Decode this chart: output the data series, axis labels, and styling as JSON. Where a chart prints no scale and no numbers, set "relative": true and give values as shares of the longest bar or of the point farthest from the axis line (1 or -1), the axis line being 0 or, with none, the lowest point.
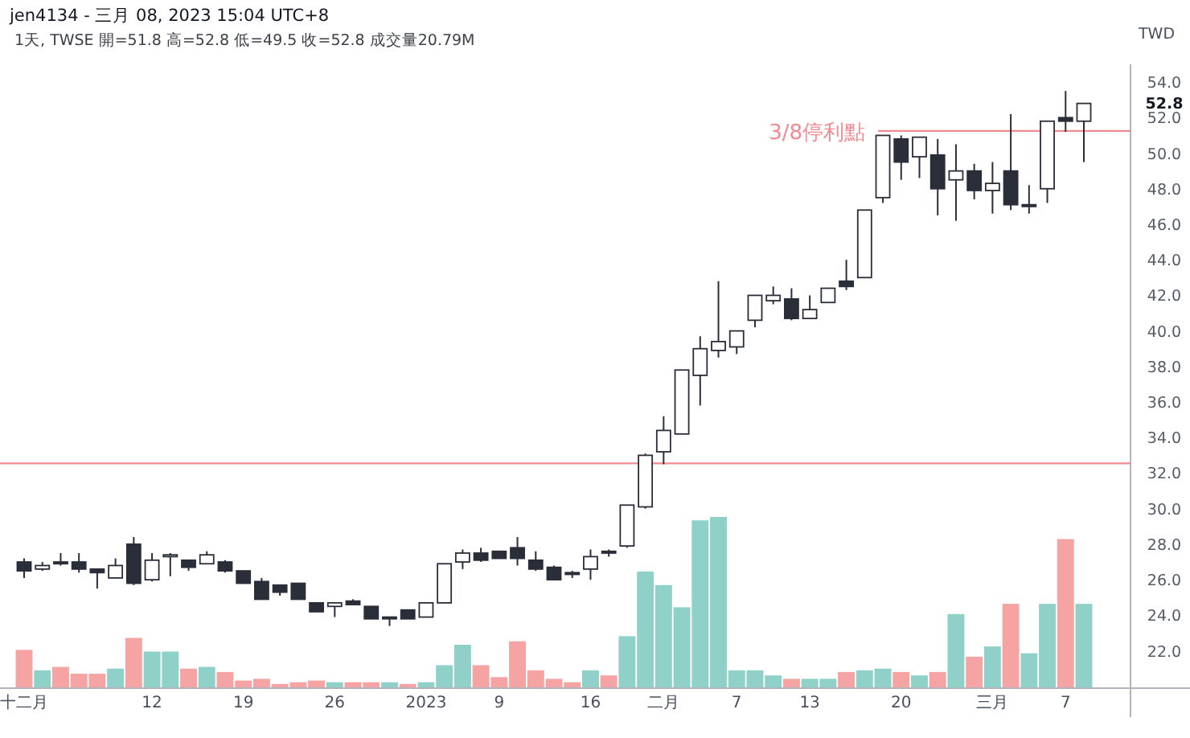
{
  "chart_data": [
    {
      "type": "candlestick",
      "title": "jen4134 - 三月 08, 2023 15:04 UTC+8",
      "subtitle": "1天, TWSE 開=51.8 高=52.8 低=49.5 收=52.8 成交量20.79M",
      "ylabel": "TWD",
      "categories": [
        "十二月",
        null,
        null,
        null,
        null,
        null,
        null,
        "12",
        null,
        null,
        null,
        null,
        "19",
        null,
        null,
        null,
        null,
        "26",
        null,
        null,
        null,
        null,
        "2023",
        null,
        null,
        null,
        "9",
        null,
        null,
        null,
        null,
        "16",
        null,
        null,
        null,
        "二月",
        null,
        null,
        null,
        "7",
        null,
        null,
        null,
        "13",
        null,
        null,
        null,
        null,
        "20",
        null,
        null,
        null,
        null,
        "三月",
        null,
        null,
        null,
        "7",
        null
      ],
      "ohlc": [
        [
          27.0,
          27.2,
          26.1,
          26.5
        ],
        [
          26.6,
          27.0,
          26.5,
          26.8
        ],
        [
          27.0,
          27.5,
          26.8,
          26.9
        ],
        [
          27.0,
          27.5,
          26.4,
          26.6
        ],
        [
          26.6,
          26.6,
          25.5,
          26.4
        ],
        [
          26.1,
          27.2,
          26.1,
          26.8
        ],
        [
          28.0,
          28.4,
          25.7,
          25.8
        ],
        [
          26.0,
          27.5,
          25.9,
          27.1
        ],
        [
          27.3,
          27.5,
          26.2,
          27.4
        ],
        [
          27.1,
          27.1,
          26.5,
          26.7
        ],
        [
          26.9,
          27.6,
          26.9,
          27.4
        ],
        [
          27.0,
          27.1,
          26.4,
          26.5
        ],
        [
          26.5,
          26.5,
          25.8,
          25.8
        ],
        [
          25.9,
          26.1,
          24.9,
          24.9
        ],
        [
          25.7,
          25.7,
          25.1,
          25.3
        ],
        [
          25.8,
          25.8,
          24.9,
          24.9
        ],
        [
          24.7,
          24.7,
          24.2,
          24.2
        ],
        [
          24.5,
          24.7,
          23.9,
          24.7
        ],
        [
          24.8,
          24.9,
          24.6,
          24.6
        ],
        [
          24.5,
          24.5,
          23.8,
          23.8
        ],
        [
          23.9,
          23.9,
          23.4,
          23.8
        ],
        [
          24.3,
          24.3,
          23.8,
          23.8
        ],
        [
          23.9,
          24.7,
          23.9,
          24.7
        ],
        [
          24.7,
          26.9,
          24.7,
          26.9
        ],
        [
          27.0,
          27.7,
          26.6,
          27.5
        ],
        [
          27.5,
          27.8,
          27.0,
          27.1
        ],
        [
          27.6,
          27.6,
          27.2,
          27.2
        ],
        [
          27.8,
          28.4,
          26.8,
          27.2
        ],
        [
          27.1,
          27.6,
          26.5,
          26.6
        ],
        [
          26.7,
          26.8,
          26.0,
          26.0
        ],
        [
          26.4,
          26.5,
          26.1,
          26.3
        ],
        [
          26.6,
          27.7,
          26.0,
          27.3
        ],
        [
          27.6,
          27.7,
          27.3,
          27.5
        ],
        [
          27.9,
          30.2,
          27.8,
          30.2
        ],
        [
          30.1,
          33.1,
          30.0,
          33.0
        ],
        [
          33.2,
          35.2,
          32.5,
          34.4
        ],
        [
          34.2,
          37.8,
          34.2,
          37.8
        ],
        [
          37.5,
          39.7,
          35.8,
          39.0
        ],
        [
          38.9,
          42.8,
          38.5,
          39.4
        ],
        [
          39.1,
          40.0,
          38.7,
          40.0
        ],
        [
          40.6,
          42.0,
          40.2,
          42.0
        ],
        [
          41.7,
          42.5,
          41.5,
          42.0
        ],
        [
          41.8,
          42.4,
          40.6,
          40.7
        ],
        [
          40.7,
          42.0,
          40.7,
          41.2
        ],
        [
          41.6,
          42.4,
          41.6,
          42.4
        ],
        [
          42.8,
          44.0,
          42.3,
          42.5
        ],
        [
          43.0,
          46.8,
          43.0,
          46.8
        ],
        [
          47.5,
          51.0,
          47.2,
          51.0
        ],
        [
          50.8,
          51.0,
          48.5,
          49.5
        ],
        [
          49.8,
          50.9,
          48.6,
          50.9
        ],
        [
          49.9,
          50.8,
          46.5,
          48.0
        ],
        [
          48.5,
          50.5,
          46.2,
          49.0
        ],
        [
          49.0,
          49.4,
          47.4,
          47.9
        ],
        [
          47.9,
          49.5,
          46.6,
          48.3
        ],
        [
          49.0,
          52.2,
          46.8,
          47.1
        ],
        [
          47.1,
          48.2,
          46.6,
          47.0
        ],
        [
          48.0,
          51.8,
          47.2,
          51.8
        ],
        [
          52.0,
          53.5,
          51.2,
          51.8
        ],
        [
          51.8,
          52.8,
          49.5,
          52.8
        ]
      ],
      "ylim": [
        19.9,
        55.0
      ],
      "yticks": [
        {
          "value": 22,
          "label": "22.0"
        },
        {
          "value": 24,
          "label": "24.0"
        },
        {
          "value": 26,
          "label": "26.0"
        },
        {
          "value": 28,
          "label": "28.0"
        },
        {
          "value": 30,
          "label": "30.0"
        },
        {
          "value": 32,
          "label": "32.0"
        },
        {
          "value": 34,
          "label": "34.0"
        },
        {
          "value": 36,
          "label": "36.0"
        },
        {
          "value": 38,
          "label": "38.0"
        },
        {
          "value": 40,
          "label": "40.0"
        },
        {
          "value": 42,
          "label": "42.0"
        },
        {
          "value": 44,
          "label": "44.0"
        },
        {
          "value": 46,
          "label": "46.0"
        },
        {
          "value": 48,
          "label": "48.0"
        },
        {
          "value": 50,
          "label": "50.0"
        },
        {
          "value": 52,
          "label": "52.0"
        },
        {
          "value": 54,
          "label": "54.0"
        }
      ],
      "ref_lines": [
        {
          "axis": "y",
          "value": 51.25,
          "label": "3/8停利點",
          "color": "#f28b91"
        },
        {
          "axis": "y",
          "value": 32.55,
          "color": "#f28b91"
        }
      ],
      "annotations": [
        "52.8"
      ]
    },
    {
      "type": "bar",
      "relative": true,
      "categories": [
        null,
        null,
        null,
        null,
        null,
        null,
        null,
        null,
        null,
        null,
        null,
        null,
        null,
        null,
        null,
        null,
        null,
        null,
        null,
        null,
        null,
        null,
        null,
        null,
        null,
        null,
        null,
        null,
        null,
        null,
        null,
        null,
        null,
        null,
        null,
        null,
        null,
        null,
        null,
        null,
        null,
        null,
        null,
        null,
        null,
        null,
        null,
        null,
        null,
        null,
        null,
        null,
        null,
        null,
        null,
        null,
        null,
        null,
        null
      ],
      "values": [
        0.22,
        0.1,
        0.12,
        0.08,
        0.08,
        0.11,
        0.29,
        0.21,
        0.21,
        0.11,
        0.12,
        0.09,
        0.04,
        0.05,
        0.02,
        0.03,
        0.04,
        0.03,
        0.03,
        0.03,
        0.03,
        0.02,
        0.03,
        0.13,
        0.25,
        0.13,
        0.06,
        0.27,
        0.1,
        0.05,
        0.03,
        0.1,
        0.07,
        0.3,
        0.68,
        0.6,
        0.47,
        0.98,
        1,
        0.1,
        0.1,
        0.07,
        0.05,
        0.05,
        0.05,
        0.09,
        0.1,
        0.11,
        0.09,
        0.07,
        0.09,
        0.43,
        0.18,
        0.24,
        0.49,
        0.2,
        0.49,
        0.87,
        0.49
      ],
      "colors": [
        "#f5a3a3",
        "#8fd1c8",
        "#f5a3a3",
        "#f5a3a3",
        "#f5a3a3",
        "#8fd1c8",
        "#f5a3a3",
        "#8fd1c8",
        "#8fd1c8",
        "#f5a3a3",
        "#8fd1c8",
        "#f5a3a3",
        "#f5a3a3",
        "#f5a3a3",
        "#f5a3a3",
        "#f5a3a3",
        "#f5a3a3",
        "#8fd1c8",
        "#f5a3a3",
        "#f5a3a3",
        "#8fd1c8",
        "#f5a3a3",
        "#8fd1c8",
        "#8fd1c8",
        "#8fd1c8",
        "#f5a3a3",
        "#f5a3a3",
        "#f5a3a3",
        "#f5a3a3",
        "#f5a3a3",
        "#f5a3a3",
        "#8fd1c8",
        "#f5a3a3",
        "#8fd1c8",
        "#8fd1c8",
        "#8fd1c8",
        "#8fd1c8",
        "#8fd1c8",
        "#8fd1c8",
        "#8fd1c8",
        "#8fd1c8",
        "#8fd1c8",
        "#f5a3a3",
        "#8fd1c8",
        "#8fd1c8",
        "#f5a3a3",
        "#8fd1c8",
        "#8fd1c8",
        "#f5a3a3",
        "#8fd1c8",
        "#f5a3a3",
        "#8fd1c8",
        "#f5a3a3",
        "#8fd1c8",
        "#f5a3a3",
        "#8fd1c8",
        "#8fd1c8",
        "#f5a3a3",
        "#8fd1c8"
      ]
    }
  ]
}
